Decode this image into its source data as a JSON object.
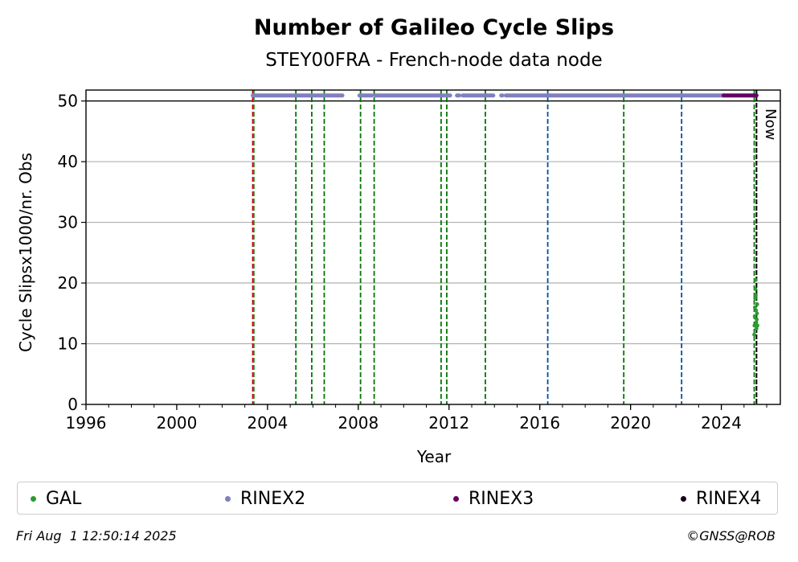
{
  "chart_data": {
    "type": "scatter",
    "title": "Number of Galileo Cycle Slips",
    "subtitle": "STEY00FRA - French-node data node",
    "xlabel": "Year",
    "ylabel": "Cycle Slipsx1000/nr. Obs",
    "xlim": [
      1996,
      2026.6
    ],
    "ylim": [
      0,
      51.8
    ],
    "x_ticks": [
      1996,
      2000,
      2004,
      2008,
      2012,
      2016,
      2020,
      2024
    ],
    "y_ticks": [
      0,
      10,
      20,
      30,
      40,
      50
    ],
    "grid": "y",
    "reference_line_y": 50,
    "now_label": "Now",
    "now_x": 2025.58,
    "vertical_lines": [
      {
        "x": 2003.35,
        "color": "#cc0000"
      },
      {
        "x": 2003.4,
        "color": "#2e8b2e"
      },
      {
        "x": 2005.25,
        "color": "#007700"
      },
      {
        "x": 2005.95,
        "color": "#007700"
      },
      {
        "x": 2006.5,
        "color": "#007700"
      },
      {
        "x": 2008.1,
        "color": "#007700"
      },
      {
        "x": 2008.7,
        "color": "#007700"
      },
      {
        "x": 2011.65,
        "color": "#007700"
      },
      {
        "x": 2011.9,
        "color": "#007700"
      },
      {
        "x": 2013.6,
        "color": "#007700"
      },
      {
        "x": 2016.35,
        "color": "#00509e"
      },
      {
        "x": 2019.7,
        "color": "#007700"
      },
      {
        "x": 2022.25,
        "color": "#00509e"
      },
      {
        "x": 2025.45,
        "color": "#007700"
      },
      {
        "x": 2025.55,
        "color": "#000000"
      }
    ],
    "series": [
      {
        "name": "GAL",
        "color": "#2e9b2e",
        "points": [
          [
            2025.45,
            11.5
          ],
          [
            2025.46,
            13.0
          ],
          [
            2025.47,
            14.5
          ],
          [
            2025.48,
            16.0
          ],
          [
            2025.49,
            17.5
          ],
          [
            2025.5,
            19.0
          ],
          [
            2025.51,
            20.5
          ],
          [
            2025.52,
            18.0
          ],
          [
            2025.53,
            15.5
          ],
          [
            2025.54,
            13.5
          ],
          [
            2025.55,
            12.5
          ],
          [
            2025.56,
            14.0
          ],
          [
            2025.57,
            15.0
          ],
          [
            2025.58,
            16.5
          ],
          [
            2025.59,
            13.0
          ]
        ]
      },
      {
        "name": "RINEX2",
        "color": "#8080c0",
        "segments": [
          [
            2003.35,
            2007.3
          ],
          [
            2008.05,
            2008.6
          ],
          [
            2008.75,
            2011.8
          ],
          [
            2011.9,
            2012.05
          ],
          [
            2012.35,
            2012.45
          ],
          [
            2012.6,
            2013.95
          ],
          [
            2014.3,
            2014.35
          ],
          [
            2014.5,
            2024.1
          ]
        ],
        "y": 50.9
      },
      {
        "name": "RINEX3",
        "color": "#660066",
        "segments": [
          [
            2024.1,
            2025.55
          ]
        ],
        "y": 50.9
      },
      {
        "name": "RINEX4",
        "color": "#1a0020",
        "segments": [],
        "y": 50.9
      }
    ]
  },
  "footer": {
    "timestamp": "Fri Aug  1 12:50:14 2025",
    "credit": "©GNSS@ROB"
  }
}
